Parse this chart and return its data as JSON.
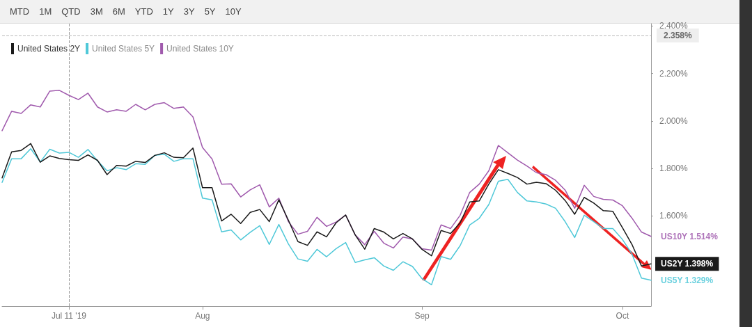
{
  "chart_data": {
    "type": "line",
    "annotations": [
      "MTD",
      "1M",
      "QTD",
      "3M",
      "6M",
      "YTD",
      "1Y",
      "3Y",
      "5Y",
      "10Y"
    ],
    "categories": [
      null,
      null,
      null,
      null,
      null,
      null,
      null,
      "Jul 11 '19",
      null,
      null,
      null,
      null,
      null,
      null,
      null,
      null,
      null,
      null,
      null,
      null,
      null,
      "Aug",
      null,
      null,
      null,
      null,
      null,
      null,
      null,
      null,
      null,
      null,
      null,
      null,
      null,
      null,
      null,
      null,
      null,
      null,
      null,
      null,
      null,
      null,
      "Sep",
      null,
      null,
      null,
      null,
      null,
      null,
      null,
      null,
      null,
      null,
      null,
      null,
      null,
      null,
      null,
      null,
      null,
      null,
      null,
      null,
      "Oct",
      null,
      null,
      null
    ],
    "series": [
      {
        "name": "United States 2Y",
        "color": "#1a1a1a",
        "values": [
          1.76,
          1.87,
          1.876,
          1.905,
          1.826,
          1.853,
          1.842,
          1.837,
          1.834,
          1.857,
          1.834,
          1.774,
          1.813,
          1.81,
          1.83,
          1.825,
          1.855,
          1.866,
          1.847,
          1.845,
          1.886,
          1.719,
          1.719,
          1.579,
          1.607,
          1.568,
          1.615,
          1.627,
          1.576,
          1.668,
          1.582,
          1.492,
          1.476,
          1.533,
          1.512,
          1.571,
          1.604,
          1.52,
          1.46,
          1.547,
          1.532,
          1.503,
          1.526,
          1.503,
          1.459,
          1.432,
          1.539,
          1.526,
          1.571,
          1.659,
          1.663,
          1.734,
          1.795,
          1.779,
          1.762,
          1.734,
          1.742,
          1.736,
          1.708,
          1.665,
          1.607,
          1.678,
          1.654,
          1.622,
          1.619,
          1.551,
          1.48,
          1.389,
          1.398
        ],
        "value_labels": [
          null,
          null,
          null,
          null,
          null,
          null,
          null,
          null,
          null,
          null,
          null,
          null,
          null,
          null,
          null,
          null,
          null,
          null,
          null,
          null,
          null,
          null,
          null,
          null,
          null,
          null,
          null,
          null,
          null,
          null,
          null,
          null,
          null,
          null,
          null,
          null,
          null,
          null,
          null,
          null,
          null,
          null,
          null,
          null,
          null,
          null,
          null,
          null,
          null,
          null,
          null,
          null,
          null,
          null,
          null,
          null,
          null,
          null,
          null,
          null,
          null,
          null,
          null,
          null,
          null,
          null,
          null,
          null,
          "US2Y 1.398%"
        ]
      },
      {
        "name": "United States 5Y",
        "color": "#4fc8d8",
        "values": [
          1.741,
          1.841,
          1.841,
          1.883,
          1.827,
          1.881,
          1.865,
          1.868,
          1.847,
          1.88,
          1.832,
          1.79,
          1.803,
          1.795,
          1.82,
          1.817,
          1.855,
          1.86,
          1.83,
          1.841,
          1.841,
          1.675,
          1.668,
          1.533,
          1.541,
          1.499,
          1.531,
          1.559,
          1.48,
          1.564,
          1.482,
          1.419,
          1.409,
          1.459,
          1.428,
          1.462,
          1.488,
          1.404,
          1.415,
          1.424,
          1.389,
          1.371,
          1.407,
          1.387,
          1.336,
          1.31,
          1.429,
          1.417,
          1.475,
          1.562,
          1.59,
          1.648,
          1.746,
          1.754,
          1.699,
          1.663,
          1.659,
          1.65,
          1.632,
          1.576,
          1.509,
          1.603,
          1.576,
          1.547,
          1.547,
          1.501,
          1.44,
          1.338,
          1.329
        ],
        "value_labels": [
          null,
          null,
          null,
          null,
          null,
          null,
          null,
          null,
          null,
          null,
          null,
          null,
          null,
          null,
          null,
          null,
          null,
          null,
          null,
          null,
          null,
          null,
          null,
          null,
          null,
          null,
          null,
          null,
          null,
          null,
          null,
          null,
          null,
          null,
          null,
          null,
          null,
          null,
          null,
          null,
          null,
          null,
          null,
          null,
          null,
          null,
          null,
          null,
          null,
          null,
          null,
          null,
          null,
          null,
          null,
          null,
          null,
          null,
          null,
          null,
          null,
          null,
          null,
          null,
          null,
          null,
          null,
          null,
          "US5Y 1.329%"
        ]
      },
      {
        "name": "United States 10Y",
        "color": "#a05aad",
        "values": [
          1.959,
          2.041,
          2.032,
          2.068,
          2.059,
          2.126,
          2.129,
          2.108,
          2.09,
          2.117,
          2.059,
          2.038,
          2.047,
          2.041,
          2.07,
          2.047,
          2.07,
          2.077,
          2.053,
          2.059,
          2.017,
          1.888,
          1.84,
          1.734,
          1.735,
          1.68,
          1.71,
          1.731,
          1.638,
          1.675,
          1.576,
          1.523,
          1.535,
          1.594,
          1.556,
          1.574,
          1.604,
          1.52,
          1.479,
          1.535,
          1.485,
          1.465,
          1.511,
          1.503,
          1.462,
          1.456,
          1.562,
          1.547,
          1.603,
          1.699,
          1.734,
          1.79,
          1.897,
          1.866,
          1.835,
          1.81,
          1.782,
          1.774,
          1.75,
          1.709,
          1.632,
          1.729,
          1.682,
          1.67,
          1.667,
          1.643,
          1.591,
          1.532,
          1.514
        ],
        "value_labels": [
          null,
          null,
          null,
          null,
          null,
          null,
          null,
          null,
          null,
          null,
          null,
          null,
          null,
          null,
          null,
          null,
          null,
          null,
          null,
          null,
          null,
          null,
          null,
          null,
          null,
          null,
          null,
          null,
          null,
          null,
          null,
          null,
          null,
          null,
          null,
          null,
          null,
          null,
          null,
          null,
          null,
          null,
          null,
          null,
          null,
          null,
          null,
          null,
          null,
          null,
          null,
          null,
          null,
          null,
          null,
          null,
          null,
          null,
          null,
          null,
          null,
          null,
          null,
          null,
          null,
          null,
          null,
          null,
          "US10Y 1.514%"
        ]
      }
    ],
    "ylim": [
      1.22,
      2.41
    ],
    "yticks": [
      {
        "value": 1.6,
        "label": "1.600%"
      },
      {
        "value": 1.8,
        "label": "1.800%"
      },
      {
        "value": 2.0,
        "label": "2.000%"
      },
      {
        "value": 2.2,
        "label": "2.200%"
      },
      {
        "value": 2.4,
        "label": "2.400%"
      }
    ],
    "ref_lines": [
      {
        "axis": "y",
        "value": 2.358,
        "label": "2.358%",
        "color": "#bbbbbb",
        "line_style": "dashed"
      },
      {
        "axis": "x",
        "value": "Jul 11 '19",
        "color": "#999999",
        "line_style": "dashed"
      }
    ],
    "grid": false,
    "legend": "top left",
    "marker": "none",
    "line_style": "solid"
  }
}
